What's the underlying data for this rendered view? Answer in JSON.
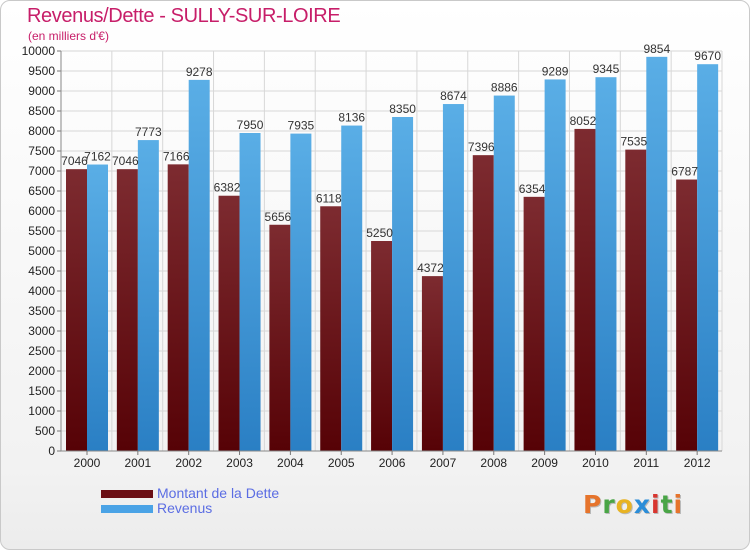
{
  "title": "Revenus/Dette - SULLY-SUR-LOIRE",
  "subtitle": "(en milliers d'€)",
  "legend": {
    "debt_label": "Montant de la Dette",
    "revenue_label": "Revenus"
  },
  "logo": {
    "text": "Proxiti",
    "letter_colors": [
      "#e6742c",
      "#49a546",
      "#e8b323",
      "#2b8dd8",
      "#d8362f",
      "#49a546",
      "#e6742c"
    ]
  },
  "colors": {
    "debt": "#7d2b30",
    "debt_dark": "#560206",
    "revenue": "#5aaee6",
    "revenue_dark": "#2a7fc4",
    "title": "#c71e69",
    "legend_text": "#5b6de3"
  },
  "chart_data": {
    "type": "bar",
    "categories": [
      "2000",
      "2001",
      "2002",
      "2003",
      "2004",
      "2005",
      "2006",
      "2007",
      "2008",
      "2009",
      "2010",
      "2011",
      "2012"
    ],
    "series": [
      {
        "name": "Montant de la Dette",
        "values": [
          7046,
          7046,
          7166,
          6382,
          5656,
          6118,
          5250,
          4372,
          7396,
          6354,
          8052,
          7535,
          6787
        ]
      },
      {
        "name": "Revenus",
        "values": [
          7162,
          7773,
          9278,
          7950,
          7935,
          8136,
          8350,
          8674,
          8886,
          9289,
          9345,
          9854,
          9670
        ]
      }
    ],
    "yticks": [
      0,
      500,
      1000,
      1500,
      2000,
      2500,
      3000,
      3500,
      4000,
      4500,
      5000,
      5500,
      6000,
      6500,
      7000,
      7500,
      8000,
      8500,
      9000,
      9500,
      10000
    ],
    "ylim": [
      0,
      10000
    ],
    "grid": true,
    "legend_position": "bottom-left"
  }
}
